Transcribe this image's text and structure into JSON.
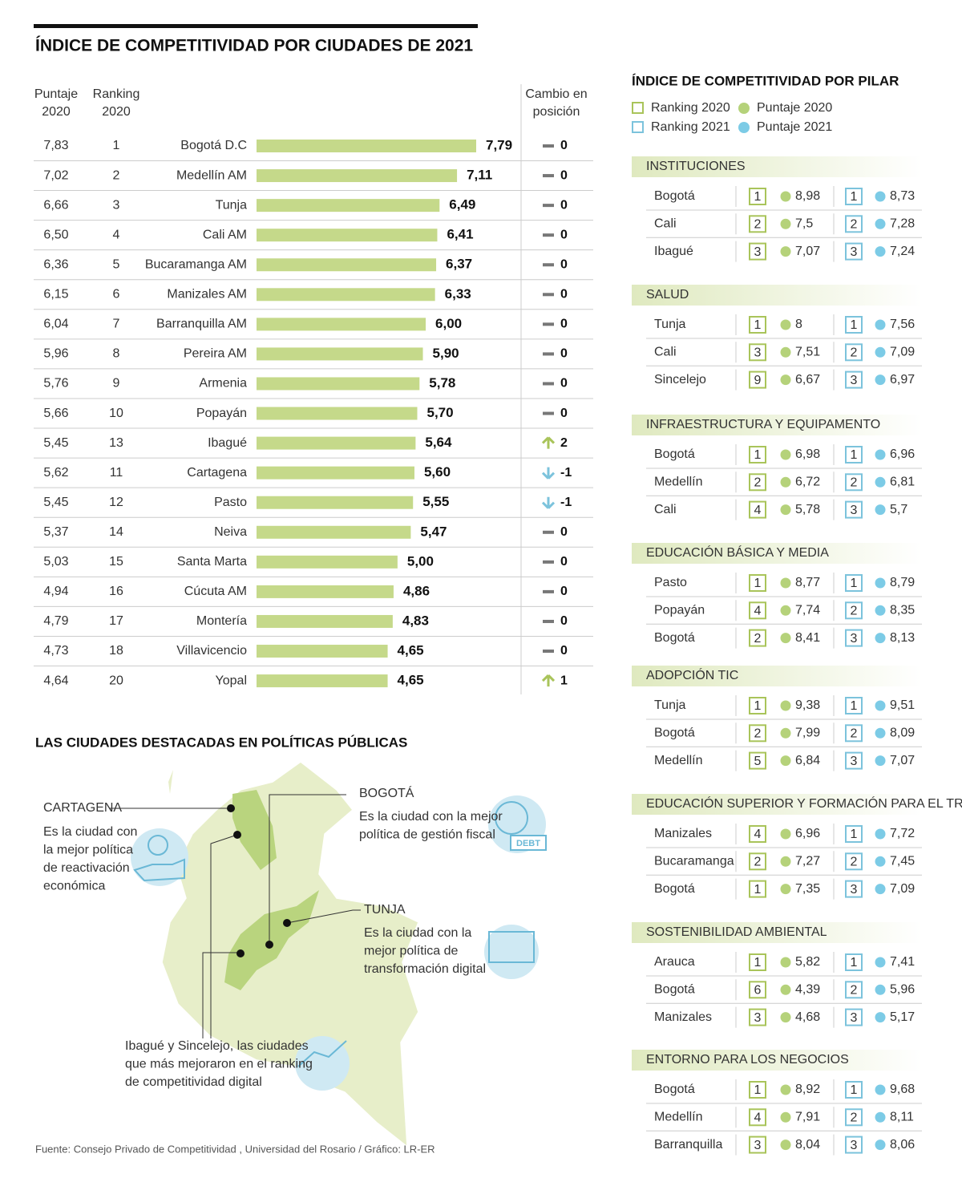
{
  "title": "ÍNDICE DE COMPETITIVIDAD POR CIUDADES DE 2021",
  "table": {
    "headers": {
      "score_2020": [
        "Puntaje",
        "2020"
      ],
      "ranking_2020": [
        "Ranking",
        "2020"
      ],
      "change": [
        "Cambio en",
        "posición"
      ]
    },
    "rows": [
      {
        "score_2020": "7,83",
        "ranking_2020": "1",
        "city": "Bogotá D.C",
        "change": 0
      },
      {
        "score_2020": "7,02",
        "ranking_2020": "2",
        "city": "Medellín AM",
        "change": 0
      },
      {
        "score_2020": "6,66",
        "ranking_2020": "3",
        "city": "Tunja",
        "change": 0
      },
      {
        "score_2020": "6,50",
        "ranking_2020": "4",
        "city": "Cali AM",
        "change": 0
      },
      {
        "score_2020": "6,36",
        "ranking_2020": "5",
        "city": "Bucaramanga AM",
        "change": 0
      },
      {
        "score_2020": "6,15",
        "ranking_2020": "6",
        "city": "Manizales AM",
        "change": 0
      },
      {
        "score_2020": "6,04",
        "ranking_2020": "7",
        "city": "Barranquilla AM",
        "change": 0
      },
      {
        "score_2020": "5,96",
        "ranking_2020": "8",
        "city": "Pereira AM",
        "change": 0
      },
      {
        "score_2020": "5,76",
        "ranking_2020": "9",
        "city": "Armenia",
        "change": 0
      },
      {
        "score_2020": "5,66",
        "ranking_2020": "10",
        "city": "Popayán",
        "change": 0
      },
      {
        "score_2020": "5,45",
        "ranking_2020": "13",
        "city": "Ibagué",
        "change": 2
      },
      {
        "score_2020": "5,62",
        "ranking_2020": "11",
        "city": "Cartagena",
        "change": -1
      },
      {
        "score_2020": "5,45",
        "ranking_2020": "12",
        "city": "Pasto",
        "change": -1
      },
      {
        "score_2020": "5,37",
        "ranking_2020": "14",
        "city": "Neiva",
        "change": 0
      },
      {
        "score_2020": "5,03",
        "ranking_2020": "15",
        "city": "Santa Marta",
        "change": 0
      },
      {
        "score_2020": "4,94",
        "ranking_2020": "16",
        "city": "Cúcuta AM",
        "change": 0
      },
      {
        "score_2020": "4,79",
        "ranking_2020": "17",
        "city": "Montería",
        "change": 0
      },
      {
        "score_2020": "4,73",
        "ranking_2020": "18",
        "city": "Villavicencio",
        "change": 0
      },
      {
        "score_2020": "4,64",
        "ranking_2020": "20",
        "city": "Yopal",
        "change": 1
      }
    ],
    "values": [
      7.79,
      7.11,
      6.49,
      6.41,
      6.37,
      6.33,
      6.0,
      5.9,
      5.78,
      5.7,
      5.64,
      5.6,
      5.55,
      5.47,
      5.0,
      4.86,
      4.83,
      4.65,
      4.65
    ],
    "value_labels": [
      "7,79",
      "7,11",
      "6,49",
      "6,41",
      "6,37",
      "6,33",
      "6,00",
      "5,90",
      "5,78",
      "5,70",
      "5,64",
      "5,60",
      "5,55",
      "5,47",
      "5,00",
      "4,86",
      "4,83",
      "4,65",
      "4,65"
    ],
    "color": "#c5d98a"
  },
  "pillars": {
    "title": "ÍNDICE DE COMPETITIVIDAD POR PILAR",
    "legend": {
      "ranking_2020": "Ranking 2020",
      "score_2020": "Puntaje 2020",
      "ranking_2021": "Ranking 2021",
      "score_2021": "Puntaje 2021"
    },
    "groups": [
      {
        "name": "INSTITUCIONES",
        "rows": [
          [
            "Bogotá",
            "1",
            "8,98",
            "1",
            "8,73"
          ],
          [
            "Cali",
            "2",
            "7,5",
            "2",
            "7,28"
          ],
          [
            "Ibagué",
            "3",
            "7,07",
            "3",
            "7,24"
          ]
        ]
      },
      {
        "name": "SALUD",
        "rows": [
          [
            "Tunja",
            "1",
            "8",
            "1",
            "7,56"
          ],
          [
            "Cali",
            "3",
            "7,51",
            "2",
            "7,09"
          ],
          [
            "Sincelejo",
            "9",
            "6,67",
            "3",
            "6,97"
          ]
        ]
      },
      {
        "name": "INFRAESTRUCTURA Y EQUIPAMENTO",
        "rows": [
          [
            "Bogotá",
            "1",
            "6,98",
            "1",
            "6,96"
          ],
          [
            "Medellín",
            "2",
            "6,72",
            "2",
            "6,81"
          ],
          [
            "Cali",
            "4",
            "5,78",
            "3",
            "5,7"
          ]
        ]
      },
      {
        "name": "EDUCACIÓN BÁSICA Y MEDIA",
        "rows": [
          [
            "Pasto",
            "1",
            "8,77",
            "1",
            "8,79"
          ],
          [
            "Popayán",
            "4",
            "7,74",
            "2",
            "8,35"
          ],
          [
            "Bogotá",
            "2",
            "8,41",
            "3",
            "8,13"
          ]
        ]
      },
      {
        "name": "ADOPCIÓN TIC",
        "rows": [
          [
            "Tunja",
            "1",
            "9,38",
            "1",
            "9,51"
          ],
          [
            "Bogotá",
            "2",
            "7,99",
            "2",
            "8,09"
          ],
          [
            "Medellín",
            "5",
            "6,84",
            "3",
            "7,07"
          ]
        ]
      },
      {
        "name": "EDUCACIÓN SUPERIOR Y FORMACIÓN PARA EL TRABAJO",
        "rows": [
          [
            "Manizales",
            "4",
            "6,96",
            "1",
            "7,72"
          ],
          [
            "Bucaramanga",
            "2",
            "7,27",
            "2",
            "7,45"
          ],
          [
            "Bogotá",
            "1",
            "7,35",
            "3",
            "7,09"
          ]
        ]
      },
      {
        "name": "SOSTENIBILIDAD AMBIENTAL",
        "rows": [
          [
            "Arauca",
            "1",
            "5,82",
            "1",
            "7,41"
          ],
          [
            "Bogotá",
            "6",
            "4,39",
            "2",
            "5,96"
          ],
          [
            "Manizales",
            "3",
            "4,68",
            "3",
            "5,17"
          ]
        ]
      },
      {
        "name": "ENTORNO PARA LOS NEGOCIOS",
        "rows": [
          [
            "Bogotá",
            "1",
            "8,92",
            "1",
            "9,68"
          ],
          [
            "Medellín",
            "4",
            "7,91",
            "2",
            "8,11"
          ],
          [
            "Barranquilla",
            "3",
            "8,04",
            "3",
            "8,06"
          ]
        ]
      }
    ]
  },
  "map": {
    "title": "LAS CIUDADES DESTACADAS EN POLÍTICAS PÚBLICAS",
    "cartagena": {
      "name": "CARTAGENA",
      "text": [
        "Es la ciudad con",
        "la mejor política",
        "de reactivación",
        "económica"
      ]
    },
    "bogota": {
      "name": "BOGOTÁ",
      "text": [
        "Es la ciudad con la mejor",
        "política de gestión fiscal"
      ],
      "icon_label": "DEBT"
    },
    "tunja": {
      "name": "TUNJA",
      "text": [
        "Es la ciudad con la",
        "mejor política de",
        "transformación digital"
      ]
    },
    "ibague": {
      "text": [
        "Ibagué y Sincelejo, las ciudades",
        "que más mejoraron en el ranking",
        "de competitividad digital"
      ]
    }
  },
  "source": "Fuente: Consejo Privado de Competitividad , Universidad del Rosario / Gráfico: LR-ER"
}
